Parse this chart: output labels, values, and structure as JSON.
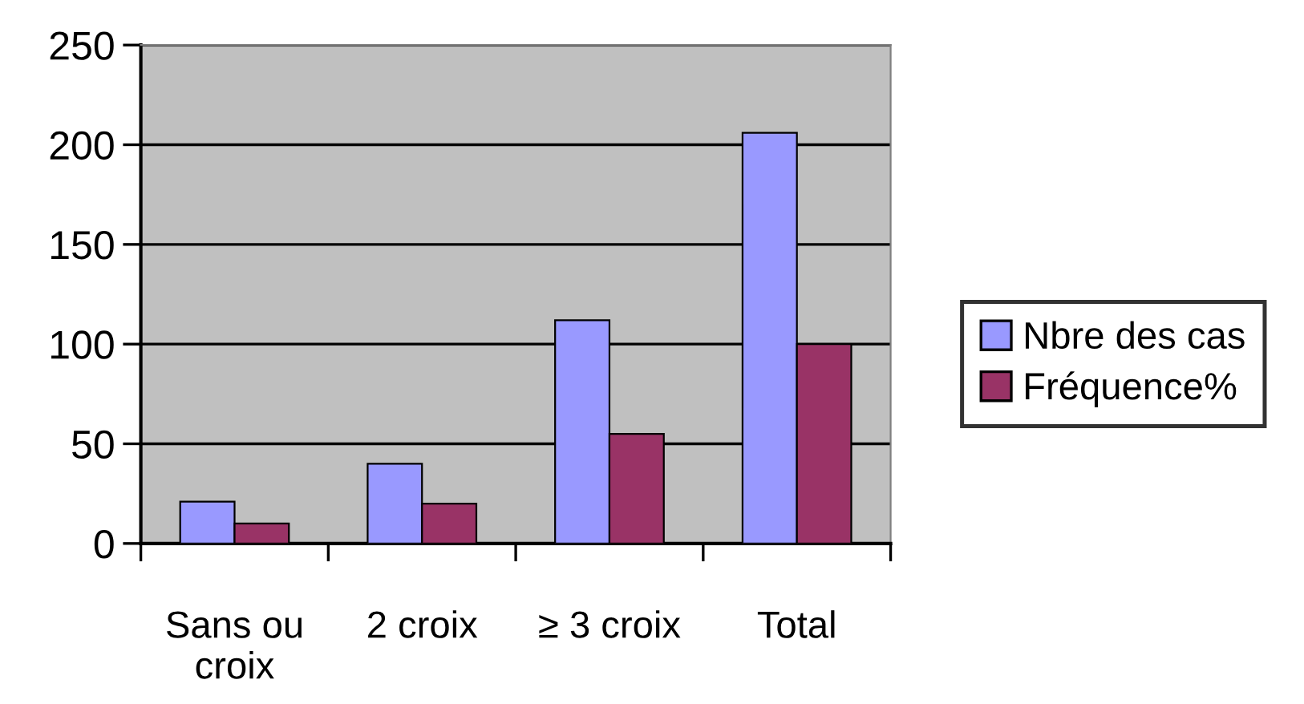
{
  "chart_data": {
    "type": "bar",
    "categories": [
      "Sans ou\ncroix",
      "2 croix",
      "≥ 3 croix",
      "Total"
    ],
    "series": [
      {
        "name": "Nbre des cas",
        "color": "#9999ff",
        "values": [
          21,
          40,
          112,
          206
        ]
      },
      {
        "name": "Fréquence%",
        "color": "#993366",
        "values": [
          10,
          20,
          55,
          100
        ]
      }
    ],
    "ylim": [
      0,
      250
    ],
    "yticks": [
      0,
      50,
      100,
      150,
      200,
      250
    ],
    "grid": "y",
    "legend": "right"
  }
}
